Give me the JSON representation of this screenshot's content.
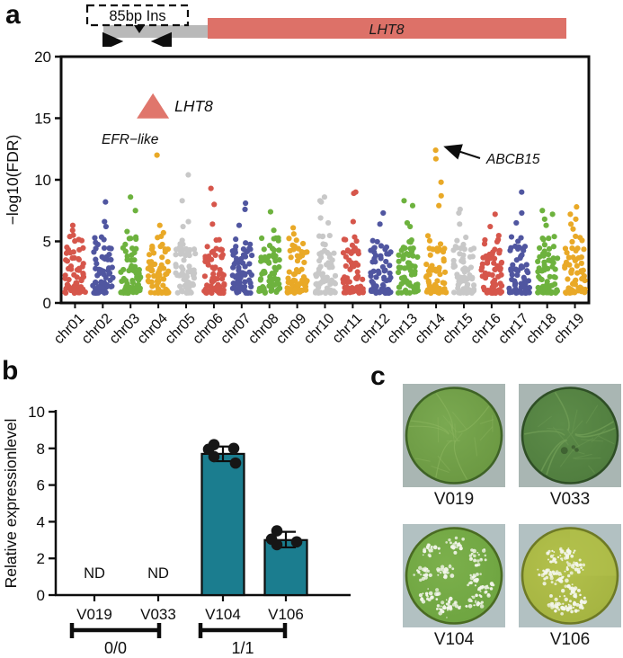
{
  "panels": {
    "a": "a",
    "b": "b",
    "c": "c"
  },
  "gene_diagram": {
    "insertion_label": "85bp Ins",
    "gene_label": "LHT8",
    "gene_color": "#dd7168",
    "flank_color": "#b9b9b9"
  },
  "chart_data": [
    {
      "id": "manhattan",
      "type": "scatter",
      "title": "",
      "xlabel": "",
      "ylabel": "−log10(FDR)",
      "ylim": [
        0,
        20
      ],
      "yticks": [
        0,
        5,
        10,
        15,
        20
      ],
      "grid": false,
      "point_color_cycle": [
        "#d6564b",
        "#5056a0",
        "#6db23e",
        "#e9a927",
        "#c8c8c8"
      ],
      "chromosomes": [
        {
          "name": "chr01",
          "color": "#d6564b",
          "top_points": [
            6.3,
            5.9,
            5.5
          ]
        },
        {
          "name": "chr02",
          "color": "#5056a0",
          "top_points": [
            8.2,
            6.6,
            6.2
          ]
        },
        {
          "name": "chr03",
          "color": "#6db23e",
          "top_points": [
            8.6,
            7.5,
            5.8
          ]
        },
        {
          "name": "chr04",
          "color": "#e9a927",
          "top_points": [
            12.0,
            6.3,
            5.7
          ]
        },
        {
          "name": "chr05",
          "color": "#c8c8c8",
          "top_points": [
            10.4,
            8.3,
            6.6,
            6.2
          ]
        },
        {
          "name": "chr06",
          "color": "#d6564b",
          "top_points": [
            9.3,
            8.0,
            6.4
          ]
        },
        {
          "name": "chr07",
          "color": "#5056a0",
          "top_points": [
            8.1,
            7.6,
            6.3
          ]
        },
        {
          "name": "chr08",
          "color": "#6db23e",
          "top_points": [
            7.4,
            5.9
          ]
        },
        {
          "name": "chr09",
          "color": "#e9a927",
          "top_points": [
            6.1,
            5.6
          ]
        },
        {
          "name": "chr10",
          "color": "#c8c8c8",
          "top_points": [
            8.6,
            8.3,
            8.2,
            6.9,
            6.5
          ]
        },
        {
          "name": "chr11",
          "color": "#d6564b",
          "top_points": [
            9.0,
            8.9,
            6.6
          ]
        },
        {
          "name": "chr12",
          "color": "#5056a0",
          "top_points": [
            7.3,
            6.4
          ]
        },
        {
          "name": "chr13",
          "color": "#6db23e",
          "top_points": [
            8.3,
            7.9,
            6.5,
            6.2
          ]
        },
        {
          "name": "chr14",
          "color": "#e9a927",
          "top_points": [
            12.4,
            11.7,
            9.8,
            8.7,
            7.9
          ]
        },
        {
          "name": "chr15",
          "color": "#c8c8c8",
          "top_points": [
            7.6,
            7.3,
            6.4
          ]
        },
        {
          "name": "chr16",
          "color": "#d6564b",
          "top_points": [
            7.2,
            6.2
          ]
        },
        {
          "name": "chr17",
          "color": "#5056a0",
          "top_points": [
            9.0,
            7.3,
            6.5
          ]
        },
        {
          "name": "chr18",
          "color": "#6db23e",
          "top_points": [
            7.5,
            7.2,
            6.8,
            6.3
          ]
        },
        {
          "name": "chr19",
          "color": "#e9a927",
          "top_points": [
            7.8,
            7.2,
            6.8,
            6.4,
            6.0
          ]
        }
      ],
      "annotations": [
        {
          "text": "LHT8",
          "style": "italic",
          "marker": "triangle",
          "marker_color": "#e0766c",
          "near_chrom": "chr04",
          "at_value": 16
        },
        {
          "text": "EFR−like",
          "style": "italic",
          "near_chrom": "chr04",
          "labels_point_value": 12.0
        },
        {
          "text": "ABCB15",
          "style": "italic",
          "arrow": true,
          "near_chrom": "chr14",
          "labels_point_value": 12.4
        }
      ]
    },
    {
      "id": "expression",
      "type": "bar",
      "title": "",
      "xlabel": "",
      "ylabel": "Relative expressionlevel",
      "ylim": [
        0,
        10
      ],
      "yticks": [
        0,
        2,
        4,
        6,
        8,
        10
      ],
      "categories": [
        "V019",
        "V033",
        "V104",
        "V106"
      ],
      "values": [
        0,
        0,
        7.7,
        3.0
      ],
      "nd_label": "ND",
      "nd_flags": [
        true,
        true,
        false,
        false
      ],
      "error_low": [
        null,
        null,
        7.3,
        2.6
      ],
      "error_high": [
        null,
        null,
        8.1,
        3.45
      ],
      "points": [
        [],
        [],
        [
          8.2,
          7.95,
          8.0,
          7.55,
          7.2
        ],
        [
          3.5,
          3.05,
          2.9,
          2.75
        ]
      ],
      "bar_color": "#1b7d8f",
      "genotype_groups": [
        {
          "label": "0/0",
          "from": "V019",
          "to": "V033"
        },
        {
          "label": "1/1",
          "from": "V104",
          "to": "V106"
        }
      ]
    }
  ],
  "photos": {
    "items": [
      {
        "label": "V019",
        "pattern": "veins",
        "bg_color": "#a9b6b3",
        "disc_color": "#68953f",
        "disc_light": "#7aa951",
        "edge_color": "#3f6326",
        "vein_color": "#8cb55f"
      },
      {
        "label": "V033",
        "pattern": "veins-dark",
        "bg_color": "#a9b6b3",
        "disc_color": "#4d7a3c",
        "disc_light": "#5d8c49",
        "edge_color": "#2f4f26",
        "vein_color": "#6f9c55"
      },
      {
        "label": "V104",
        "pattern": "speckles-scattered",
        "bg_color": "#b2c1c2",
        "disc_color": "#6ba23e",
        "disc_light": "#7cb04c",
        "edge_color": "#4a6b22",
        "speckle_color": "#f2f5ea"
      },
      {
        "label": "V106",
        "pattern": "speckles-clustered",
        "bg_color": "#b2c1c2",
        "disc_color": "#a2b13f",
        "disc_light": "#b3c14c",
        "edge_color": "#6e7a25",
        "speckle_color": "#f4f6ec"
      }
    ]
  }
}
